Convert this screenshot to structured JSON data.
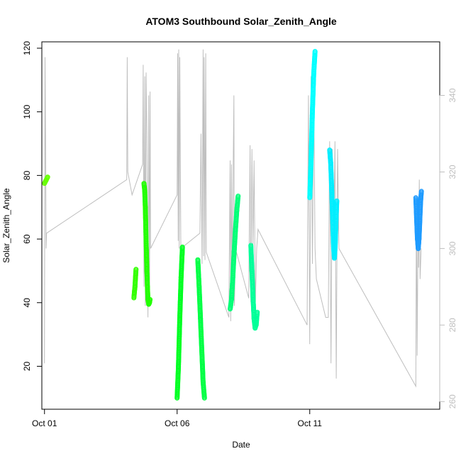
{
  "chart_data": {
    "type": "scatter",
    "title": "ATOM3 Southbound Solar_Zenith_Angle",
    "xlabel": "Date",
    "ylabel": "Solar_Zenith_Angle",
    "x_axis": {
      "unit": "day of October",
      "range": [
        0.9,
        15.9
      ],
      "ticks": [
        {
          "value": 1,
          "label": "Oct 01"
        },
        {
          "value": 6,
          "label": "Oct 06"
        },
        {
          "value": 11,
          "label": "Oct 11"
        }
      ]
    },
    "y_axis": {
      "range": [
        6.5,
        122
      ],
      "ticks": [
        20,
        40,
        60,
        80,
        100,
        120
      ]
    },
    "y2_axis": {
      "color": "#bebebe",
      "range": [
        258,
        354
      ],
      "ticks": [
        260,
        280,
        300,
        320,
        340
      ]
    },
    "grid": false,
    "legend": "none",
    "series": [
      {
        "color": "#66ff00",
        "segments": [
          [
            [
              1.0,
              77.5
            ],
            [
              1.06,
              78.5
            ],
            [
              1.12,
              79.5
            ]
          ]
        ]
      },
      {
        "color": "#33ff00",
        "segments": [
          [
            [
              4.37,
              41.5
            ],
            [
              4.41,
              45.0
            ],
            [
              4.45,
              50.5
            ]
          ]
        ]
      },
      {
        "color": "#22ff00",
        "segments": [
          [
            [
              4.75,
              77.5
            ],
            [
              4.78,
              75.0
            ],
            [
              4.8,
              70.0
            ],
            [
              4.83,
              60.0
            ],
            [
              4.86,
              50.0
            ],
            [
              4.88,
              45.0
            ],
            [
              4.9,
              41.0
            ],
            [
              4.93,
              39.5
            ],
            [
              4.96,
              40.0
            ],
            [
              4.98,
              41.0
            ]
          ]
        ]
      },
      {
        "color": "#00ff22",
        "segments": [
          [
            [
              6.0,
              10.0
            ],
            [
              6.05,
              20.0
            ],
            [
              6.1,
              35.0
            ],
            [
              6.15,
              48.0
            ],
            [
              6.2,
              57.5
            ]
          ]
        ]
      },
      {
        "color": "#00ff44",
        "segments": [
          [
            [
              6.78,
              53.5
            ],
            [
              6.83,
              45.0
            ],
            [
              6.88,
              35.0
            ],
            [
              6.93,
              25.0
            ],
            [
              6.98,
              15.0
            ],
            [
              7.03,
              10.0
            ]
          ]
        ]
      },
      {
        "color": "#00ff77",
        "segments": [
          [
            [
              8.0,
              38.0
            ],
            [
              8.05,
              41.0
            ],
            [
              8.1,
              48.0
            ],
            [
              8.15,
              56.0
            ],
            [
              8.2,
              63.0
            ],
            [
              8.25,
              69.0
            ],
            [
              8.3,
              73.5
            ]
          ]
        ]
      },
      {
        "color": "#00ff99",
        "segments": [
          [
            [
              8.78,
              58.0
            ],
            [
              8.82,
              50.0
            ],
            [
              8.86,
              42.0
            ],
            [
              8.9,
              35.0
            ],
            [
              8.94,
              32.0
            ],
            [
              8.98,
              33.0
            ],
            [
              9.02,
              37.0
            ]
          ]
        ]
      },
      {
        "color": "#00ffff",
        "segments": [
          [
            [
              11.0,
              73.0
            ],
            [
              11.05,
              85.0
            ],
            [
              11.1,
              100.0
            ],
            [
              11.15,
              112.0
            ],
            [
              11.2,
              119.0
            ]
          ]
        ]
      },
      {
        "color": "#00eeff",
        "segments": [
          [
            [
              11.75,
              88.0
            ],
            [
              11.79,
              84.0
            ],
            [
              11.83,
              75.0
            ],
            [
              11.87,
              65.0
            ],
            [
              11.9,
              57.0
            ],
            [
              11.93,
              54.0
            ],
            [
              11.96,
              58.0
            ],
            [
              11.99,
              66.0
            ],
            [
              12.02,
              72.0
            ]
          ]
        ]
      },
      {
        "color": "#1e9bff",
        "segments": [
          [
            [
              15.0,
              73.0
            ],
            [
              15.03,
              66.0
            ],
            [
              15.06,
              60.0
            ],
            [
              15.09,
              57.0
            ],
            [
              15.12,
              60.0
            ],
            [
              15.15,
              66.0
            ],
            [
              15.18,
              72.0
            ],
            [
              15.21,
              75.0
            ]
          ]
        ]
      }
    ],
    "secondary_series": {
      "color": "#bebebe",
      "axis": "right",
      "points": [
        [
          1.0,
          270
        ],
        [
          1.02,
          350
        ],
        [
          1.04,
          330
        ],
        [
          1.06,
          300
        ],
        [
          1.08,
          304
        ],
        [
          4.1,
          318
        ],
        [
          4.12,
          350
        ],
        [
          4.14,
          320
        ],
        [
          4.3,
          314
        ],
        [
          4.7,
          322
        ],
        [
          4.72,
          348
        ],
        [
          4.75,
          290
        ],
        [
          4.78,
          345
        ],
        [
          4.8,
          285
        ],
        [
          4.83,
          346
        ],
        [
          4.86,
          330
        ],
        [
          4.9,
          282
        ],
        [
          4.93,
          340
        ],
        [
          4.96,
          286
        ],
        [
          4.98,
          341
        ],
        [
          5.0,
          300
        ],
        [
          6.0,
          314
        ],
        [
          6.02,
          351
        ],
        [
          6.04,
          302
        ],
        [
          6.06,
          352
        ],
        [
          6.08,
          300
        ],
        [
          6.1,
          350
        ],
        [
          6.12,
          325
        ],
        [
          6.14,
          300
        ],
        [
          6.86,
          304
        ],
        [
          6.9,
          330
        ],
        [
          6.94,
          296
        ],
        [
          6.98,
          352
        ],
        [
          7.0,
          298
        ],
        [
          7.02,
          350
        ],
        [
          7.05,
          297
        ],
        [
          7.08,
          351
        ],
        [
          7.1,
          299
        ],
        [
          7.95,
          282
        ],
        [
          8.0,
          323
        ],
        [
          8.02,
          281
        ],
        [
          8.05,
          322
        ],
        [
          8.08,
          290
        ],
        [
          8.12,
          325
        ],
        [
          8.14,
          340
        ],
        [
          8.16,
          285
        ],
        [
          8.2,
          300
        ],
        [
          8.7,
          287
        ],
        [
          8.75,
          327
        ],
        [
          8.78,
          286
        ],
        [
          8.82,
          326
        ],
        [
          8.86,
          300
        ],
        [
          8.9,
          323
        ],
        [
          8.95,
          286
        ],
        [
          9.0,
          300
        ],
        [
          9.05,
          305
        ],
        [
          10.9,
          280
        ],
        [
          10.95,
          340
        ],
        [
          11.0,
          275
        ],
        [
          11.05,
          345
        ],
        [
          11.1,
          296
        ],
        [
          11.15,
          340
        ],
        [
          11.2,
          300
        ],
        [
          11.25,
          292
        ],
        [
          11.6,
          282
        ],
        [
          11.7,
          282
        ],
        [
          11.75,
          328
        ],
        [
          11.8,
          270
        ],
        [
          11.85,
          326
        ],
        [
          11.9,
          300
        ],
        [
          11.95,
          328
        ],
        [
          12.0,
          266
        ],
        [
          12.05,
          326
        ],
        [
          12.1,
          300
        ],
        [
          15.0,
          264
        ],
        [
          15.02,
          312
        ],
        [
          15.05,
          272
        ],
        [
          15.08,
          303
        ],
        [
          15.1,
          295
        ],
        [
          15.13,
          318
        ],
        [
          15.16,
          292
        ],
        [
          15.2,
          300
        ]
      ]
    }
  }
}
